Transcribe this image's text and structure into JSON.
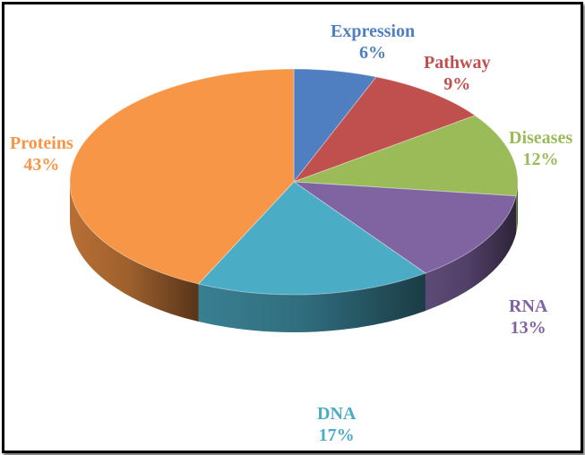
{
  "chart_data": {
    "type": "pie",
    "style": "3d",
    "title": "",
    "slices": [
      {
        "name": "Expression",
        "value": 6,
        "label": "6%",
        "color": "#4f7fc0"
      },
      {
        "name": "Pathway",
        "value": 9,
        "label": "9%",
        "color": "#c0504d"
      },
      {
        "name": "Diseases",
        "value": 12,
        "label": "12%",
        "color": "#9bbb59"
      },
      {
        "name": "RNA",
        "value": 13,
        "label": "13%",
        "color": "#8064a2"
      },
      {
        "name": "DNA",
        "value": 17,
        "label": "17%",
        "color": "#4bacc6"
      },
      {
        "name": "Proteins",
        "value": 43,
        "label": "43%",
        "color": "#f79646"
      }
    ]
  }
}
